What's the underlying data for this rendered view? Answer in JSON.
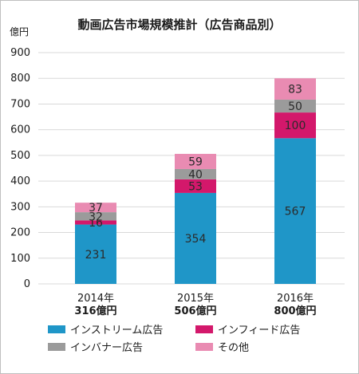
{
  "chart_data": {
    "type": "bar",
    "stacked": true,
    "title": "動画広告市場規模推計（広告商品別）",
    "ylabel": "億円",
    "ylim": [
      0,
      900
    ],
    "yticks": [
      0,
      100,
      200,
      300,
      400,
      500,
      600,
      700,
      800,
      900
    ],
    "grid": true,
    "legend_position": "bottom",
    "categories": [
      "2014年",
      "2015年",
      "2016年"
    ],
    "category_totals": [
      "316億円",
      "506億円",
      "800億円"
    ],
    "series": [
      {
        "name": "インストリーム広告",
        "color": "#1f96c8",
        "values": [
          231,
          354,
          567
        ]
      },
      {
        "name": "インフィード広告",
        "color": "#d3186b",
        "values": [
          16,
          53,
          100
        ]
      },
      {
        "name": "インバナー広告",
        "color": "#9b9b9b",
        "values": [
          32,
          40,
          50
        ]
      },
      {
        "name": "その他",
        "color": "#e98bb2",
        "values": [
          37,
          59,
          83
        ]
      }
    ]
  }
}
